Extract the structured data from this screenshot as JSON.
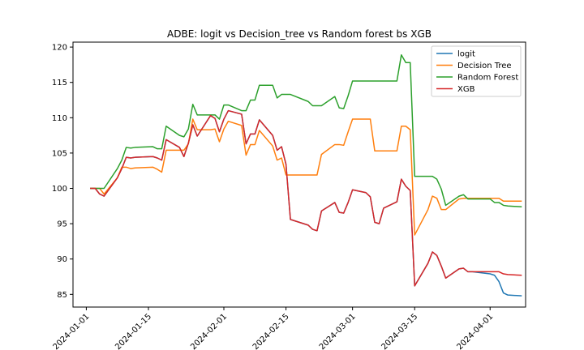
{
  "chart_data": {
    "type": "line",
    "title": "ADBE: logit vs Decision_tree vs Random forest bs XGB",
    "xlabel": "",
    "ylabel": "",
    "x_type": "date",
    "xlim": [
      "2023-12-29",
      "2024-04-09"
    ],
    "ylim": [
      83.2,
      120.7
    ],
    "xticks": [
      "2024-01-01",
      "2024-01-15",
      "2024-02-01",
      "2024-02-15",
      "2024-03-01",
      "2024-03-15",
      "2024-04-01"
    ],
    "yticks": [
      85,
      90,
      95,
      100,
      105,
      110,
      115,
      120
    ],
    "grid": false,
    "legend_position": "top-right",
    "series": [
      {
        "name": "logit",
        "color": "#1f77b4",
        "points": [
          [
            "2024-01-02",
            100.0
          ],
          [
            "2024-01-03",
            100.0
          ],
          [
            "2024-01-04",
            99.2
          ],
          [
            "2024-01-05",
            98.9
          ],
          [
            "2024-01-08",
            101.5
          ],
          [
            "2024-01-09",
            102.8
          ],
          [
            "2024-01-10",
            104.4
          ],
          [
            "2024-01-11",
            104.3
          ],
          [
            "2024-01-12",
            104.4
          ],
          [
            "2024-01-16",
            104.5
          ],
          [
            "2024-01-17",
            104.3
          ],
          [
            "2024-01-18",
            104.0
          ],
          [
            "2024-01-19",
            106.9
          ],
          [
            "2024-01-22",
            105.8
          ],
          [
            "2024-01-23",
            104.5
          ],
          [
            "2024-01-24",
            106.4
          ],
          [
            "2024-01-25",
            109.0
          ],
          [
            "2024-01-26",
            107.4
          ],
          [
            "2024-01-29",
            110.3
          ],
          [
            "2024-01-30",
            109.9
          ],
          [
            "2024-01-31",
            108.0
          ],
          [
            "2024-02-01",
            109.8
          ],
          [
            "2024-02-02",
            111.0
          ],
          [
            "2024-02-05",
            110.5
          ],
          [
            "2024-02-06",
            106.3
          ],
          [
            "2024-02-07",
            107.7
          ],
          [
            "2024-02-08",
            107.7
          ],
          [
            "2024-02-09",
            109.7
          ],
          [
            "2024-02-12",
            107.5
          ],
          [
            "2024-02-13",
            105.4
          ],
          [
            "2024-02-14",
            105.9
          ],
          [
            "2024-02-15",
            103.4
          ],
          [
            "2024-02-16",
            95.6
          ],
          [
            "2024-02-20",
            94.8
          ],
          [
            "2024-02-21",
            94.2
          ],
          [
            "2024-02-22",
            94.0
          ],
          [
            "2024-02-23",
            96.8
          ],
          [
            "2024-02-26",
            98.0
          ],
          [
            "2024-02-27",
            96.6
          ],
          [
            "2024-02-28",
            96.5
          ],
          [
            "2024-02-29",
            98.0
          ],
          [
            "2024-03-01",
            99.8
          ],
          [
            "2024-03-04",
            99.4
          ],
          [
            "2024-03-05",
            98.8
          ],
          [
            "2024-03-06",
            95.2
          ],
          [
            "2024-03-07",
            95.0
          ],
          [
            "2024-03-08",
            97.2
          ],
          [
            "2024-03-11",
            98.1
          ],
          [
            "2024-03-12",
            101.3
          ],
          [
            "2024-03-13",
            100.3
          ],
          [
            "2024-03-14",
            99.7
          ],
          [
            "2024-03-15",
            86.2
          ],
          [
            "2024-03-18",
            89.4
          ],
          [
            "2024-03-19",
            91.0
          ],
          [
            "2024-03-20",
            90.5
          ],
          [
            "2024-03-21",
            89.0
          ],
          [
            "2024-03-22",
            87.3
          ],
          [
            "2024-03-25",
            88.6
          ],
          [
            "2024-03-26",
            88.7
          ],
          [
            "2024-03-27",
            88.2
          ],
          [
            "2024-03-28",
            88.2
          ],
          [
            "2024-04-01",
            87.9
          ],
          [
            "2024-04-02",
            87.7
          ],
          [
            "2024-04-03",
            86.8
          ],
          [
            "2024-04-04",
            85.2
          ],
          [
            "2024-04-05",
            84.9
          ],
          [
            "2024-04-08",
            84.8
          ]
        ]
      },
      {
        "name": "Decision Tree",
        "color": "#ff7f0e",
        "points": [
          [
            "2024-01-02",
            100.0
          ],
          [
            "2024-01-03",
            100.0
          ],
          [
            "2024-01-04",
            100.0
          ],
          [
            "2024-01-05",
            99.2
          ],
          [
            "2024-01-08",
            101.5
          ],
          [
            "2024-01-09",
            103.0
          ],
          [
            "2024-01-10",
            103.0
          ],
          [
            "2024-01-11",
            102.8
          ],
          [
            "2024-01-12",
            102.9
          ],
          [
            "2024-01-16",
            103.0
          ],
          [
            "2024-01-17",
            102.7
          ],
          [
            "2024-01-18",
            102.3
          ],
          [
            "2024-01-19",
            105.4
          ],
          [
            "2024-01-22",
            105.4
          ],
          [
            "2024-01-23",
            105.4
          ],
          [
            "2024-01-24",
            106.3
          ],
          [
            "2024-01-25",
            109.8
          ],
          [
            "2024-01-26",
            108.3
          ],
          [
            "2024-01-29",
            108.3
          ],
          [
            "2024-01-30",
            108.4
          ],
          [
            "2024-01-31",
            106.6
          ],
          [
            "2024-02-01",
            108.4
          ],
          [
            "2024-02-02",
            109.5
          ],
          [
            "2024-02-05",
            108.9
          ],
          [
            "2024-02-06",
            104.7
          ],
          [
            "2024-02-07",
            106.2
          ],
          [
            "2024-02-08",
            106.2
          ],
          [
            "2024-02-09",
            108.2
          ],
          [
            "2024-02-12",
            106.0
          ],
          [
            "2024-02-13",
            104.0
          ],
          [
            "2024-02-14",
            104.3
          ],
          [
            "2024-02-15",
            101.9
          ],
          [
            "2024-02-16",
            101.9
          ],
          [
            "2024-02-20",
            101.9
          ],
          [
            "2024-02-21",
            101.9
          ],
          [
            "2024-02-22",
            101.9
          ],
          [
            "2024-02-23",
            104.8
          ],
          [
            "2024-02-26",
            106.2
          ],
          [
            "2024-02-27",
            106.2
          ],
          [
            "2024-02-28",
            106.1
          ],
          [
            "2024-02-29",
            108.0
          ],
          [
            "2024-03-01",
            109.8
          ],
          [
            "2024-03-04",
            109.8
          ],
          [
            "2024-03-05",
            109.8
          ],
          [
            "2024-03-06",
            105.3
          ],
          [
            "2024-03-07",
            105.3
          ],
          [
            "2024-03-08",
            105.3
          ],
          [
            "2024-03-11",
            105.3
          ],
          [
            "2024-03-12",
            108.8
          ],
          [
            "2024-03-13",
            108.8
          ],
          [
            "2024-03-14",
            108.3
          ],
          [
            "2024-03-15",
            93.4
          ],
          [
            "2024-03-18",
            97.0
          ],
          [
            "2024-03-19",
            98.9
          ],
          [
            "2024-03-20",
            98.6
          ],
          [
            "2024-03-21",
            97.0
          ],
          [
            "2024-03-22",
            97.0
          ],
          [
            "2024-03-25",
            98.5
          ],
          [
            "2024-03-26",
            98.6
          ],
          [
            "2024-03-27",
            98.6
          ],
          [
            "2024-03-28",
            98.6
          ],
          [
            "2024-04-01",
            98.6
          ],
          [
            "2024-04-02",
            98.6
          ],
          [
            "2024-04-03",
            98.6
          ],
          [
            "2024-04-04",
            98.2
          ],
          [
            "2024-04-05",
            98.2
          ],
          [
            "2024-04-08",
            98.2
          ]
        ]
      },
      {
        "name": "Random Forest",
        "color": "#2ca02c",
        "points": [
          [
            "2024-01-02",
            100.0
          ],
          [
            "2024-01-03",
            100.0
          ],
          [
            "2024-01-04",
            100.0
          ],
          [
            "2024-01-05",
            100.0
          ],
          [
            "2024-01-08",
            102.8
          ],
          [
            "2024-01-09",
            104.0
          ],
          [
            "2024-01-10",
            105.8
          ],
          [
            "2024-01-11",
            105.7
          ],
          [
            "2024-01-12",
            105.8
          ],
          [
            "2024-01-16",
            105.9
          ],
          [
            "2024-01-17",
            105.6
          ],
          [
            "2024-01-18",
            105.6
          ],
          [
            "2024-01-19",
            108.8
          ],
          [
            "2024-01-22",
            107.5
          ],
          [
            "2024-01-23",
            107.3
          ],
          [
            "2024-01-24",
            108.4
          ],
          [
            "2024-01-25",
            111.9
          ],
          [
            "2024-01-26",
            110.4
          ],
          [
            "2024-01-29",
            110.4
          ],
          [
            "2024-01-30",
            110.4
          ],
          [
            "2024-01-31",
            109.8
          ],
          [
            "2024-02-01",
            111.8
          ],
          [
            "2024-02-02",
            111.8
          ],
          [
            "2024-02-05",
            111.0
          ],
          [
            "2024-02-06",
            111.0
          ],
          [
            "2024-02-07",
            112.5
          ],
          [
            "2024-02-08",
            112.5
          ],
          [
            "2024-02-09",
            114.6
          ],
          [
            "2024-02-12",
            114.6
          ],
          [
            "2024-02-13",
            112.8
          ],
          [
            "2024-02-14",
            113.3
          ],
          [
            "2024-02-15",
            113.3
          ],
          [
            "2024-02-16",
            113.3
          ],
          [
            "2024-02-20",
            112.3
          ],
          [
            "2024-02-21",
            111.7
          ],
          [
            "2024-02-22",
            111.7
          ],
          [
            "2024-02-23",
            111.7
          ],
          [
            "2024-02-26",
            113.0
          ],
          [
            "2024-02-27",
            111.4
          ],
          [
            "2024-02-28",
            111.3
          ],
          [
            "2024-02-29",
            113.1
          ],
          [
            "2024-03-01",
            115.2
          ],
          [
            "2024-03-04",
            115.2
          ],
          [
            "2024-03-05",
            115.2
          ],
          [
            "2024-03-06",
            115.2
          ],
          [
            "2024-03-07",
            115.2
          ],
          [
            "2024-03-08",
            115.2
          ],
          [
            "2024-03-11",
            115.2
          ],
          [
            "2024-03-12",
            118.9
          ],
          [
            "2024-03-13",
            117.8
          ],
          [
            "2024-03-14",
            117.8
          ],
          [
            "2024-03-15",
            101.7
          ],
          [
            "2024-03-18",
            101.7
          ],
          [
            "2024-03-19",
            101.7
          ],
          [
            "2024-03-20",
            101.3
          ],
          [
            "2024-03-21",
            99.9
          ],
          [
            "2024-03-22",
            97.6
          ],
          [
            "2024-03-25",
            98.9
          ],
          [
            "2024-03-26",
            99.1
          ],
          [
            "2024-03-27",
            98.5
          ],
          [
            "2024-03-28",
            98.5
          ],
          [
            "2024-04-01",
            98.5
          ],
          [
            "2024-04-02",
            98.0
          ],
          [
            "2024-04-03",
            98.0
          ],
          [
            "2024-04-04",
            97.6
          ],
          [
            "2024-04-05",
            97.5
          ],
          [
            "2024-04-08",
            97.4
          ]
        ]
      },
      {
        "name": "XGB",
        "color": "#d62728",
        "points": [
          [
            "2024-01-02",
            100.0
          ],
          [
            "2024-01-03",
            100.0
          ],
          [
            "2024-01-04",
            99.2
          ],
          [
            "2024-01-05",
            98.9
          ],
          [
            "2024-01-08",
            101.5
          ],
          [
            "2024-01-09",
            102.8
          ],
          [
            "2024-01-10",
            104.4
          ],
          [
            "2024-01-11",
            104.3
          ],
          [
            "2024-01-12",
            104.4
          ],
          [
            "2024-01-16",
            104.5
          ],
          [
            "2024-01-17",
            104.3
          ],
          [
            "2024-01-18",
            104.0
          ],
          [
            "2024-01-19",
            106.9
          ],
          [
            "2024-01-22",
            105.8
          ],
          [
            "2024-01-23",
            104.5
          ],
          [
            "2024-01-24",
            106.4
          ],
          [
            "2024-01-25",
            109.0
          ],
          [
            "2024-01-26",
            107.4
          ],
          [
            "2024-01-29",
            110.3
          ],
          [
            "2024-01-30",
            109.9
          ],
          [
            "2024-01-31",
            108.0
          ],
          [
            "2024-02-01",
            109.8
          ],
          [
            "2024-02-02",
            111.0
          ],
          [
            "2024-02-05",
            110.5
          ],
          [
            "2024-02-06",
            106.3
          ],
          [
            "2024-02-07",
            107.7
          ],
          [
            "2024-02-08",
            107.7
          ],
          [
            "2024-02-09",
            109.7
          ],
          [
            "2024-02-12",
            107.5
          ],
          [
            "2024-02-13",
            105.4
          ],
          [
            "2024-02-14",
            105.9
          ],
          [
            "2024-02-15",
            103.4
          ],
          [
            "2024-02-16",
            95.6
          ],
          [
            "2024-02-20",
            94.8
          ],
          [
            "2024-02-21",
            94.2
          ],
          [
            "2024-02-22",
            94.0
          ],
          [
            "2024-02-23",
            96.8
          ],
          [
            "2024-02-26",
            98.0
          ],
          [
            "2024-02-27",
            96.6
          ],
          [
            "2024-02-28",
            96.5
          ],
          [
            "2024-02-29",
            98.0
          ],
          [
            "2024-03-01",
            99.8
          ],
          [
            "2024-03-04",
            99.4
          ],
          [
            "2024-03-05",
            98.8
          ],
          [
            "2024-03-06",
            95.2
          ],
          [
            "2024-03-07",
            95.0
          ],
          [
            "2024-03-08",
            97.2
          ],
          [
            "2024-03-11",
            98.1
          ],
          [
            "2024-03-12",
            101.3
          ],
          [
            "2024-03-13",
            100.3
          ],
          [
            "2024-03-14",
            99.7
          ],
          [
            "2024-03-15",
            86.2
          ],
          [
            "2024-03-18",
            89.4
          ],
          [
            "2024-03-19",
            91.0
          ],
          [
            "2024-03-20",
            90.5
          ],
          [
            "2024-03-21",
            89.0
          ],
          [
            "2024-03-22",
            87.3
          ],
          [
            "2024-03-25",
            88.6
          ],
          [
            "2024-03-26",
            88.7
          ],
          [
            "2024-03-27",
            88.2
          ],
          [
            "2024-03-28",
            88.2
          ],
          [
            "2024-04-01",
            88.2
          ],
          [
            "2024-04-02",
            88.2
          ],
          [
            "2024-04-03",
            88.2
          ],
          [
            "2024-04-04",
            87.9
          ],
          [
            "2024-04-05",
            87.8
          ],
          [
            "2024-04-08",
            87.7
          ]
        ]
      }
    ]
  }
}
